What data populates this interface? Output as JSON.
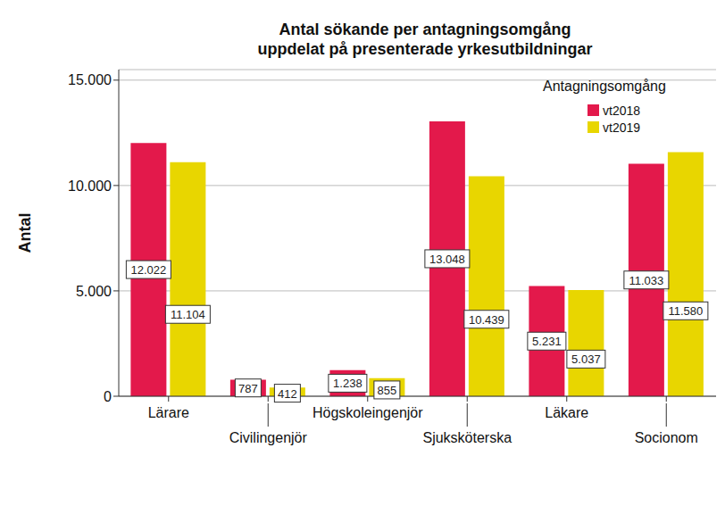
{
  "chart_data": {
    "type": "bar",
    "title": "Antal sökande per antagningsomgång\nuppdelat på presenterade yrkesutbildningar",
    "y_label": "Antal",
    "categories": [
      "Lärare",
      "Civilingenjör",
      "Högskoleingenjör",
      "Sjuksköterska",
      "Läkare",
      "Socionom"
    ],
    "series": [
      {
        "name": "vt2018",
        "color": "#e3194b",
        "values": [
          12022,
          787,
          1238,
          13048,
          5231,
          11033
        ],
        "value_labels": [
          "12.022",
          "787",
          "1.238",
          "13.048",
          "5.231",
          "11.033"
        ]
      },
      {
        "name": "vt2019",
        "color": "#e8d600",
        "values": [
          11104,
          412,
          855,
          10439,
          5037,
          11580
        ],
        "value_labels": [
          "11.104",
          "412",
          "855",
          "10.439",
          "5.037",
          "11.580"
        ]
      }
    ],
    "ylim": [
      0,
      15500
    ],
    "yticks": [
      0,
      {
        "value": 5000,
        "label": "5.000"
      },
      {
        "value": 10000,
        "label": "10.000"
      },
      {
        "value": 15000,
        "label": "15.000"
      }
    ],
    "grid": true,
    "legend": "top-right",
    "legend_title": "Antagningsomgång",
    "data_labels": true
  }
}
